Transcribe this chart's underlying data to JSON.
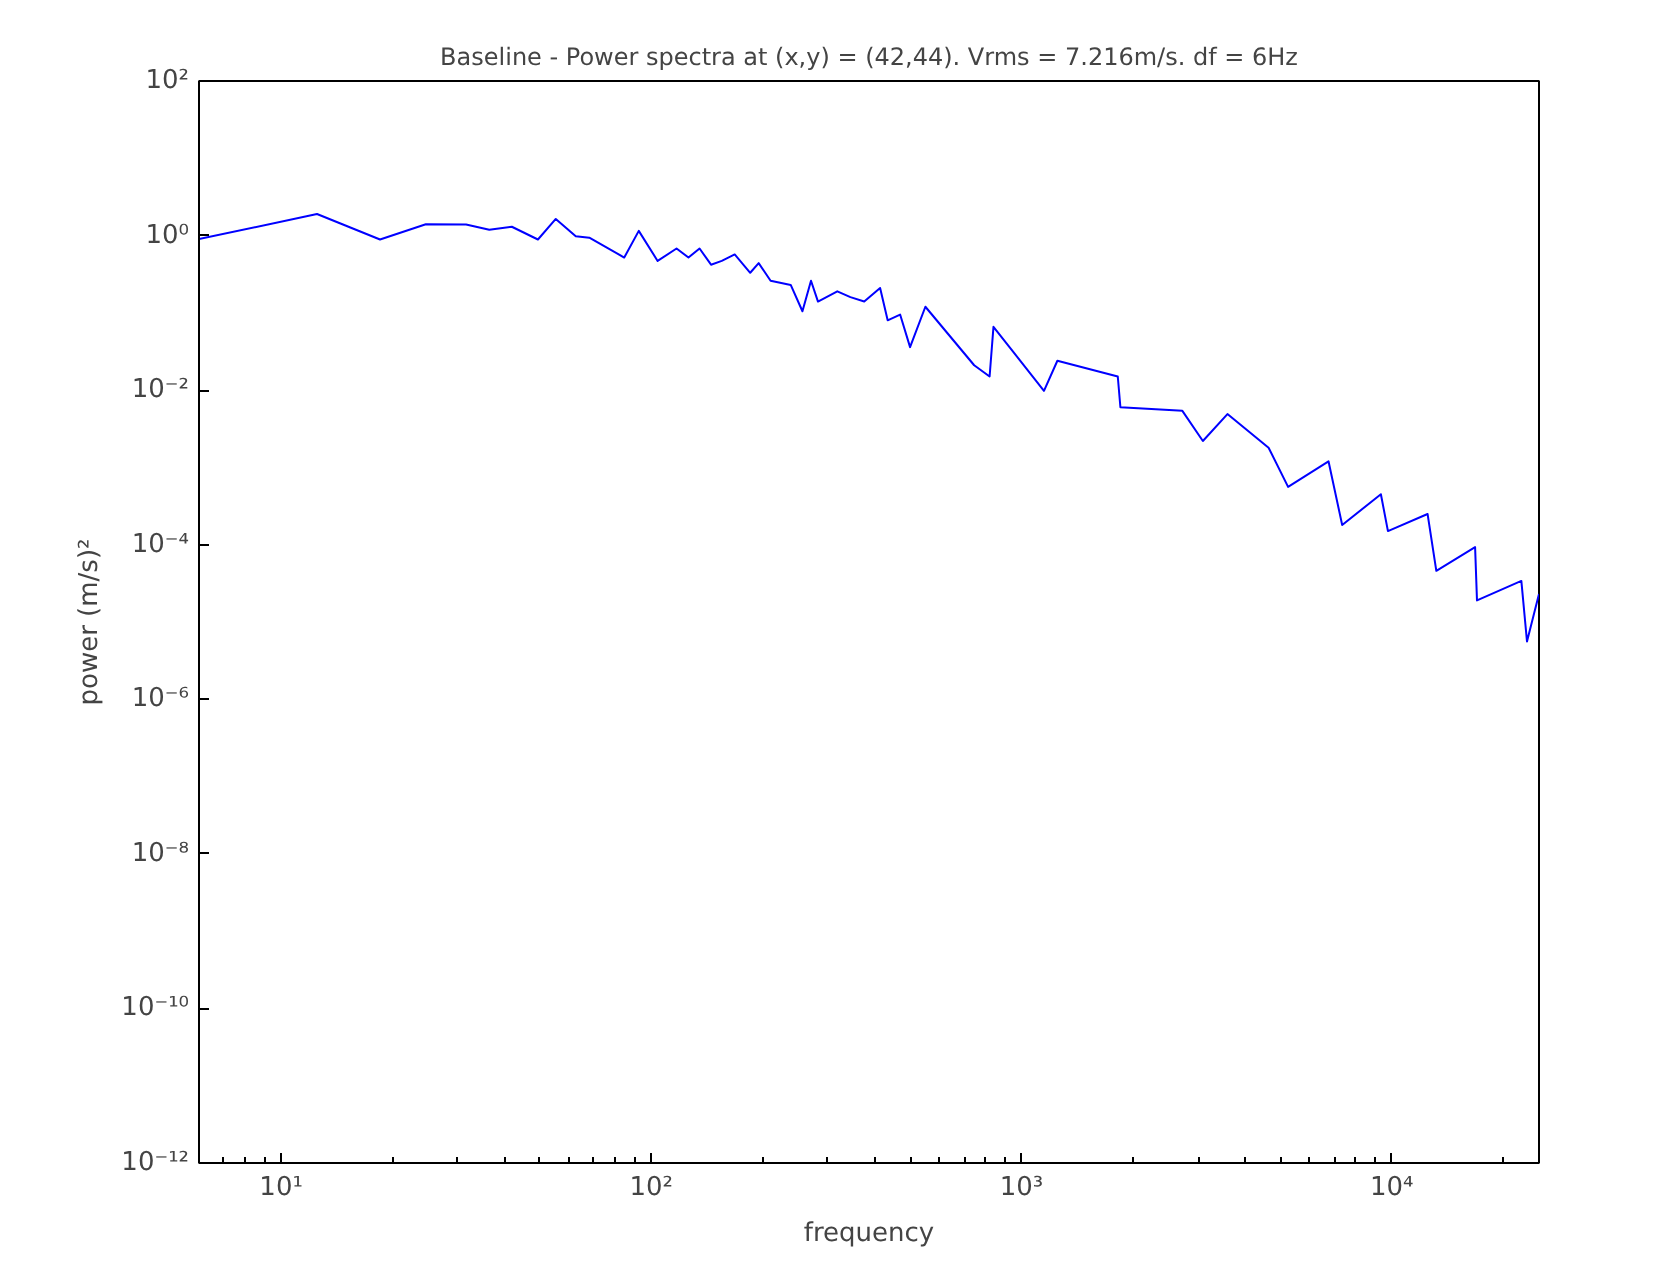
{
  "chart_data": {
    "type": "line",
    "title": "Baseline - Power spectra at (x,y) = (42,44). Vrms = 7.216m/s. df = 6Hz",
    "xlabel": "frequency",
    "ylabel": "power (m/s)²",
    "log": "xy",
    "grid": false,
    "marker": "none",
    "line_style": "solid",
    "xlim": [
      6,
      25000
    ],
    "ylim": [
      1e-12,
      100
    ],
    "xticks": [
      {
        "value": 10,
        "label": "10¹"
      },
      {
        "value": 100,
        "label": "10²"
      },
      {
        "value": 1000,
        "label": "10³"
      },
      {
        "value": 10000,
        "label": "10⁴"
      }
    ],
    "yticks": [
      {
        "value": 1e-12,
        "label": "10⁻¹²"
      },
      {
        "value": 1e-10,
        "label": "10⁻¹⁰"
      },
      {
        "value": 1e-08,
        "label": "10⁻⁸"
      },
      {
        "value": 1e-06,
        "label": "10⁻⁶"
      },
      {
        "value": 0.0001,
        "label": "10⁻⁴"
      },
      {
        "value": 0.01,
        "label": "10⁻²"
      },
      {
        "value": 1,
        "label": "10⁰"
      },
      {
        "value": 100,
        "label": "10²"
      }
    ],
    "x": [
      6,
      12.5,
      18.5,
      24.6,
      31.6,
      36.5,
      42,
      49.4,
      55.2,
      62.5,
      68,
      84.5,
      92.5,
      104,
      117,
      126,
      135,
      145,
      155,
      168,
      185,
      195,
      210,
      238,
      256,
      270,
      282,
      318,
      345,
      376,
      415,
      435,
      470,
      500,
      550,
      745,
      820,
      840,
      1150,
      1250,
      1820,
      1850,
      2720,
      3090,
      3600,
      4650,
      5250,
      6750,
      7350,
      9350,
      9770,
      12500,
      13200,
      16800,
      17000,
      22400,
      23200,
      25000
    ],
    "series": [
      {
        "color": "#0000ff",
        "values": [
          0.9,
          1.9,
          0.89,
          1.4,
          1.39,
          1.19,
          1.3,
          0.89,
          1.64,
          0.98,
          0.94,
          0.52,
          1.15,
          0.47,
          0.68,
          0.52,
          0.68,
          0.42,
          0.47,
          0.57,
          0.33,
          0.44,
          0.26,
          0.23,
          0.105,
          0.26,
          0.14,
          0.19,
          0.16,
          0.14,
          0.21,
          0.08,
          0.095,
          0.036,
          0.12,
          0.021,
          0.015,
          0.066,
          0.0098,
          0.024,
          0.015,
          0.006,
          0.0054,
          0.0022,
          0.0049,
          0.0018,
          0.00056,
          0.0012,
          0.00018,
          0.00045,
          0.00015,
          0.00025,
          4.6e-05,
          9.3e-05,
          1.9e-05,
          3.4e-05,
          5.6e-06,
          2.3e-05
        ]
      }
    ]
  }
}
